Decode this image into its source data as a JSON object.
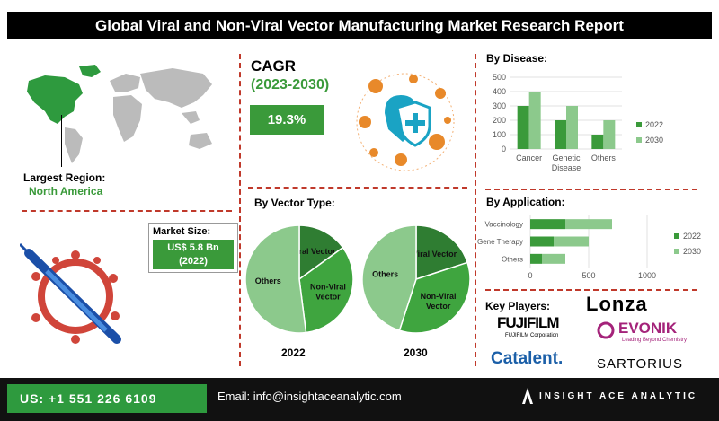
{
  "title": "Global Viral and Non-Viral Vector Manufacturing Market Research Report",
  "region": {
    "label": "Largest Region:",
    "value": "North America"
  },
  "market_size": {
    "label": "Market Size:",
    "value_line1": "US$ 5.8 Bn",
    "value_line2": "(2022)"
  },
  "cagr": {
    "label": "CAGR",
    "period": "(2023-2030)",
    "value": "19.3%"
  },
  "sections": {
    "by_disease": "By Disease:",
    "by_vector_type": "By Vector Type:",
    "by_application": "By Application:",
    "key_players": "Key Players:"
  },
  "chart_data": [
    {
      "type": "bar",
      "title": "By Disease:",
      "categories": [
        "Cancer",
        "Genetic Disease",
        "Others"
      ],
      "category_lines": [
        [
          "Cancer"
        ],
        [
          "Genetic",
          "Disease"
        ],
        [
          "Others"
        ]
      ],
      "series": [
        {
          "name": "2022",
          "values": [
            300,
            200,
            100
          ],
          "color": "#3a9a3a"
        },
        {
          "name": "2030",
          "values": [
            400,
            300,
            200
          ],
          "color": "#8cc98c"
        }
      ],
      "ylim": [
        0,
        500
      ],
      "yticks": [
        0,
        100,
        200,
        300,
        400,
        500
      ],
      "legend": "right"
    },
    {
      "type": "pie",
      "title": "2022",
      "labels": [
        "Viral Vector",
        "Non-Viral Vector",
        "Others"
      ],
      "label_lines": [
        [
          "Viral Vector"
        ],
        [
          "Non-Viral",
          "Vector"
        ],
        [
          "Others"
        ]
      ],
      "values": [
        15,
        33,
        52
      ],
      "colors": [
        "#2f7d32",
        "#3fa53f",
        "#8cc98c"
      ]
    },
    {
      "type": "pie",
      "title": "2030",
      "labels": [
        "Viral Vector",
        "Non-Viral Vector",
        "Others"
      ],
      "label_lines": [
        [
          "Viral Vector"
        ],
        [
          "Non-Viral",
          "Vector"
        ],
        [
          "Others"
        ]
      ],
      "values": [
        20,
        35,
        45
      ],
      "colors": [
        "#2f7d32",
        "#3fa53f",
        "#8cc98c"
      ]
    },
    {
      "type": "bar",
      "orientation": "horizontal",
      "stacked": true,
      "title": "By Application:",
      "categories": [
        "Vaccinology",
        "Gene Therapy",
        "Others"
      ],
      "series": [
        {
          "name": "2022",
          "values": [
            300,
            200,
            100
          ],
          "color": "#3a9a3a"
        },
        {
          "name": "2030",
          "values": [
            400,
            300,
            200
          ],
          "color": "#8cc98c"
        }
      ],
      "xlim": [
        0,
        1000
      ],
      "xticks": [
        0,
        500,
        1000
      ],
      "legend": "right"
    }
  ],
  "key_players": [
    "Lonza",
    "FUJIFILM",
    "FUJIFILM Corporation",
    "EVONIK",
    "Leading Beyond Chemistry",
    "Catalent.",
    "SARTORIUS"
  ],
  "footer": {
    "phone": "US: +1 551 226 6109",
    "email": "Email: info@insightaceanalytic.com",
    "brand": "INSIGHT ACE ANALYTIC"
  },
  "colors": {
    "accent": "#3a9a3a",
    "divider": "#c0392b",
    "virus": "#e8892a"
  }
}
